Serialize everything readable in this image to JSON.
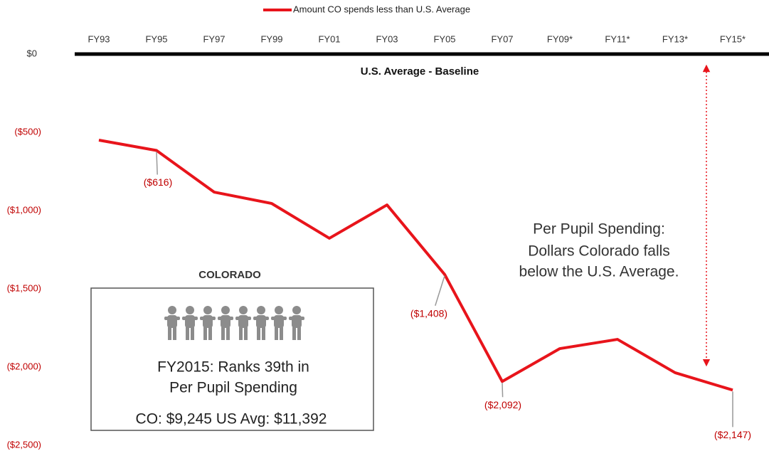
{
  "chart_data": {
    "type": "line",
    "categories": [
      "FY93",
      "FY95",
      "FY97",
      "FY99",
      "FY01",
      "FY03",
      "FY05",
      "FY07",
      "FY09*",
      "FY11*",
      "FY13*",
      "FY15*"
    ],
    "series": [
      {
        "name": "Amount CO spends less than U.S. Average",
        "color": "#e8141b",
        "values": [
          -550,
          -616,
          -882,
          -955,
          -1177,
          -964,
          -1408,
          -2092,
          -1882,
          -1823,
          -2036,
          -2147
        ],
        "value_labels": [
          null,
          "($616)",
          null,
          null,
          null,
          null,
          "($1,408)",
          "($2,092)",
          null,
          null,
          null,
          "($2,147)"
        ]
      }
    ],
    "ylim": [
      -2500,
      0
    ],
    "yticks": [
      {
        "value": 0,
        "label": "$0"
      },
      {
        "value": -500,
        "label": "($500)"
      },
      {
        "value": -1000,
        "label": "($1,000)"
      },
      {
        "value": -1500,
        "label": "($1,500)"
      },
      {
        "value": -2000,
        "label": "($2,000)"
      },
      {
        "value": -2500,
        "label": "($2,500)"
      }
    ],
    "baseline_label": "U.S. Average - Baseline",
    "annotation": [
      "Per Pupil Spending:",
      "Dollars Colorado falls",
      "below the U.S. Average."
    ],
    "box": {
      "title": "COLORADO",
      "lines": [
        "FY2015: Ranks 39th in",
        "Per Pupil Spending"
      ],
      "footer": "CO: $9,245   US Avg:  $11,392"
    },
    "legend": "top"
  }
}
